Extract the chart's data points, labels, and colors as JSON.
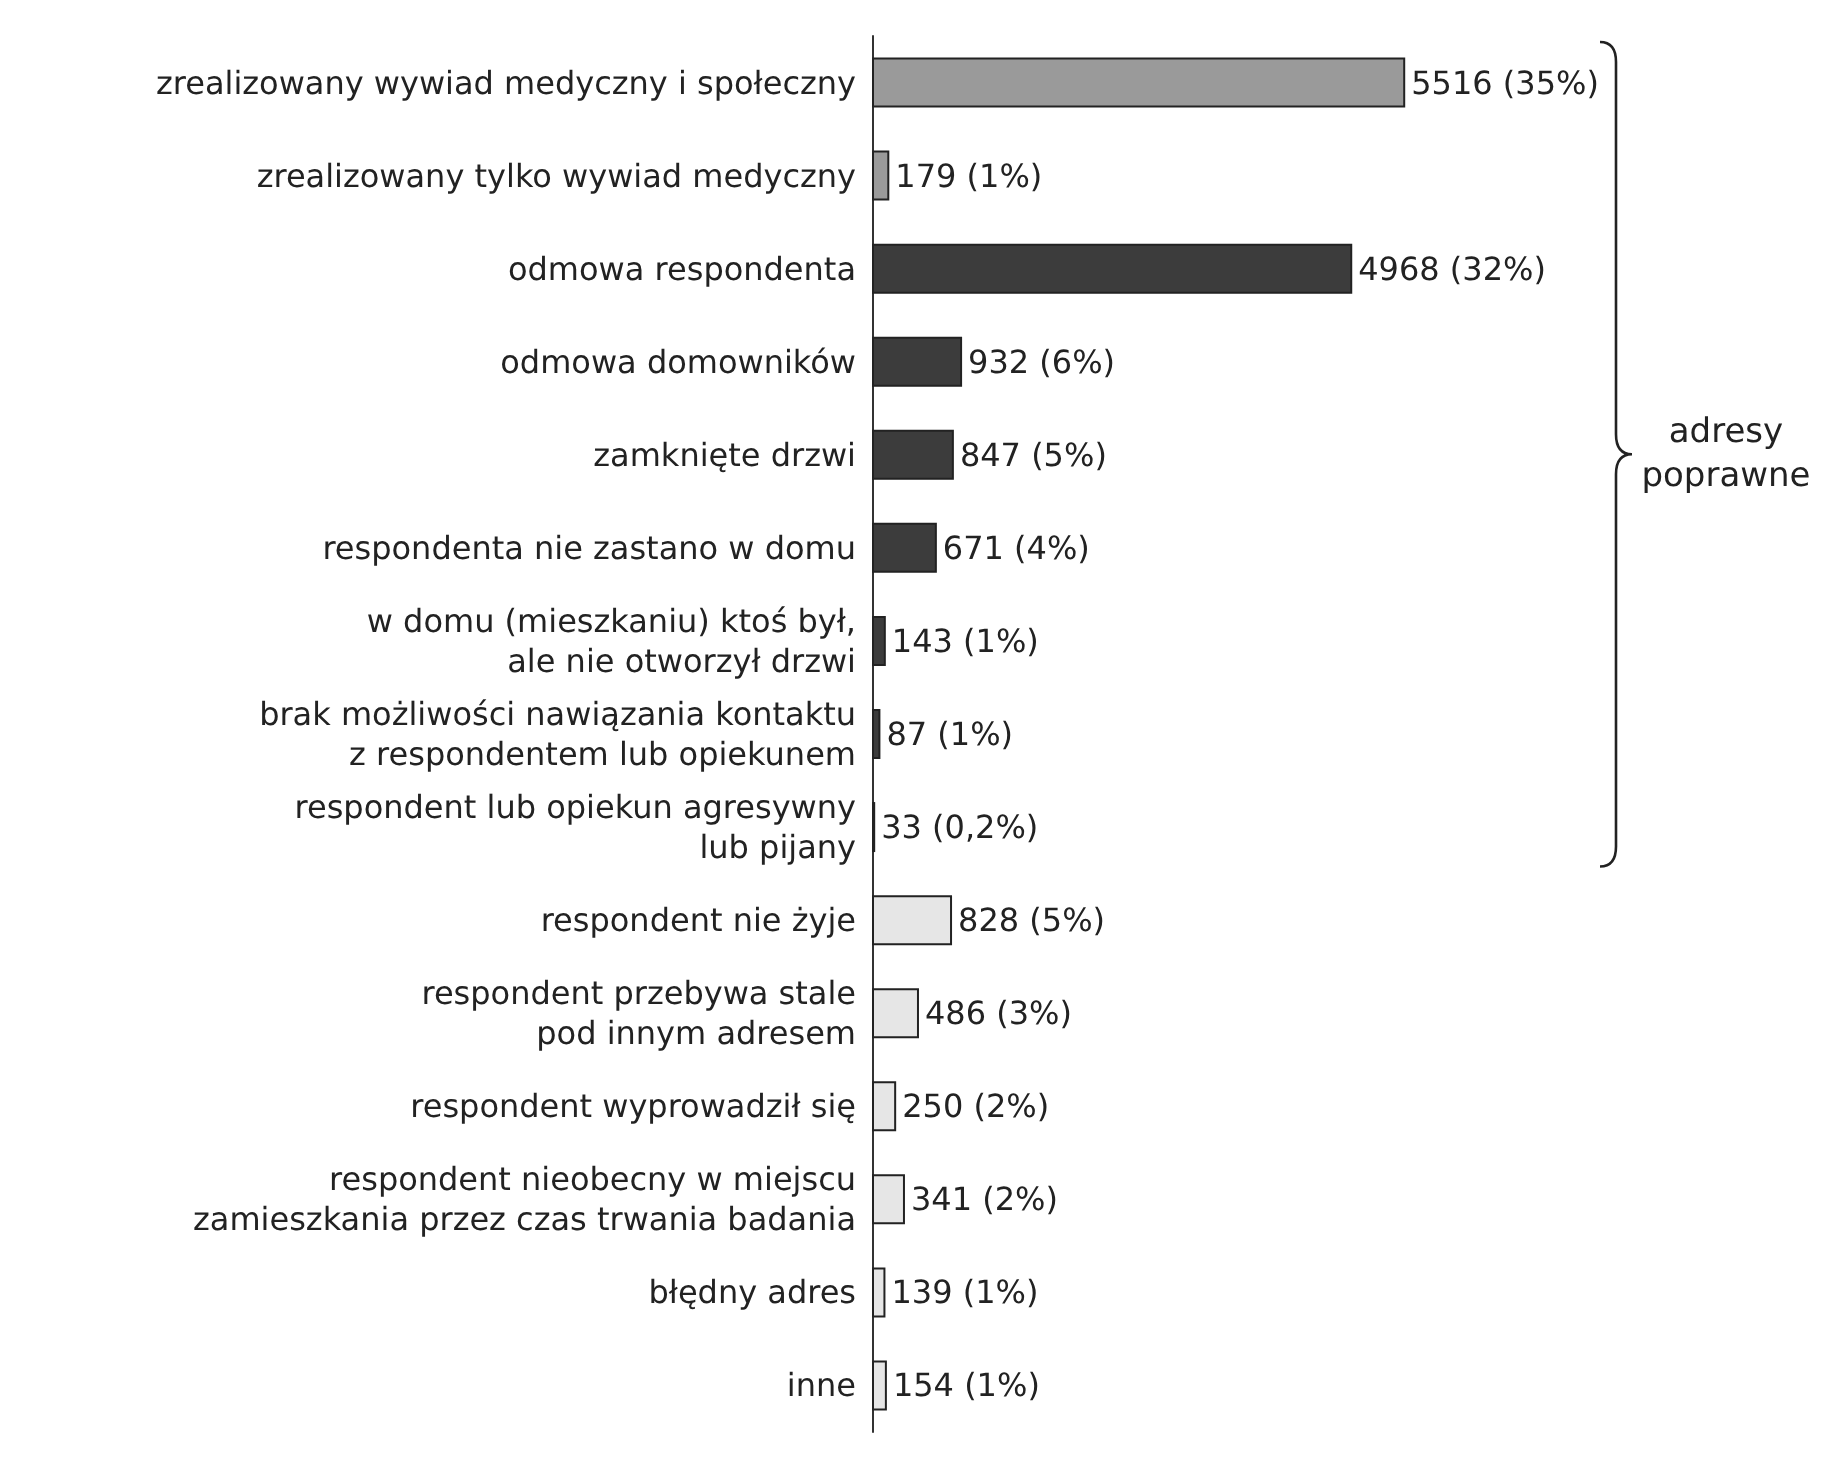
{
  "chart_data": {
    "type": "bar",
    "orientation": "horizontal",
    "categories": [
      "zrealizowany wywiad medyczny i społeczny",
      "zrealizowany tylko wywiad medyczny",
      "odmowa respondenta",
      "odmowa domowników",
      "zamknięte drzwi",
      "respondenta nie zastano w domu",
      "w domu (mieszkaniu) ktoś był,\nale nie otworzył drzwi",
      "brak możliwości nawiązania kontaktu\nz respondentem lub opiekunem",
      "respondent lub opiekun agresywny\nlub pijany",
      "respondent nie żyje",
      "respondent przebywa stale\npod innym adresem",
      "respondent wyprowadził się",
      "respondent nieobecny w miejscu\nzamieszkania przez czas trwania badania",
      "błędny adres",
      "inne"
    ],
    "values": [
      5516,
      179,
      4968,
      932,
      847,
      671,
      143,
      87,
      33,
      828,
      486,
      250,
      341,
      139,
      154
    ],
    "colors": [
      "#9a9a9a",
      "#9a9a9a",
      "#3c3c3c",
      "#3c3c3c",
      "#3c3c3c",
      "#3c3c3c",
      "#3c3c3c",
      "#3c3c3c",
      "#3c3c3c",
      "#e6e6e6",
      "#e6e6e6",
      "#e6e6e6",
      "#e6e6e6",
      "#e6e6e6",
      "#e6e6e6"
    ],
    "value_labels": [
      "5516 (35%)",
      "179 (1%)",
      "4968 (32%)",
      "932 (6%)",
      "847 (5%)",
      "671 (4%)",
      "143 (1%)",
      "87 (1%)",
      "33 (0,2%)",
      "828 (5%)",
      "486 (3%)",
      "250 (2%)",
      "341 (2%)",
      "139 (1%)",
      "154 (1%)"
    ],
    "annotations": [
      "adresy poprawne"
    ]
  }
}
